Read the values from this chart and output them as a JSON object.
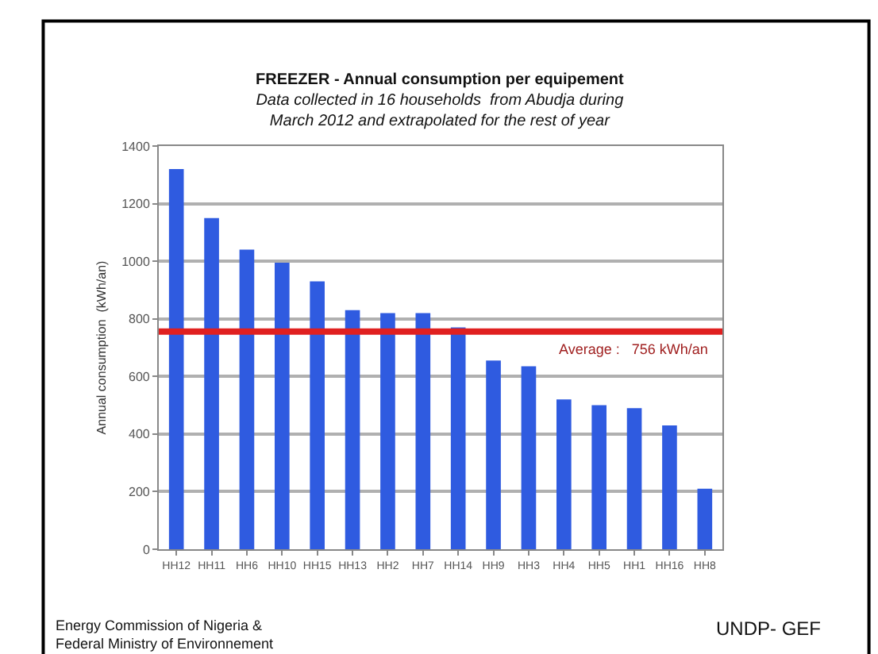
{
  "chart_data": {
    "type": "bar",
    "title": "FREEZER - Annual consumption per equipement",
    "subtitle": "Data collected in 16 households  from Abudja during\nMarch 2012 and extrapolated for the rest of year",
    "ylabel": "Annual consumption  (kWh/an)",
    "categories": [
      "HH12",
      "HH11",
      "HH6",
      "HH10",
      "HH15",
      "HH13",
      "HH2",
      "HH7",
      "HH14",
      "HH9",
      "HH3",
      "HH4",
      "HH5",
      "HH1",
      "HH16",
      "HH8"
    ],
    "values": [
      1320,
      1150,
      1040,
      995,
      930,
      830,
      820,
      820,
      770,
      655,
      635,
      520,
      500,
      490,
      430,
      210
    ],
    "color": "#2f5be0",
    "ylim": [
      0,
      1400
    ],
    "yticks": [
      0,
      200,
      400,
      600,
      800,
      1000,
      1200,
      1400
    ],
    "grid": "y",
    "ref_lines": [
      {
        "axis": "y",
        "value": 756,
        "label": "Average :   756 kWh/an",
        "color": "#e02020"
      }
    ],
    "annotations": [
      "Energy Commission of Nigeria &\nFederal Ministry of Environnement",
      "UNDP- GEF"
    ]
  }
}
